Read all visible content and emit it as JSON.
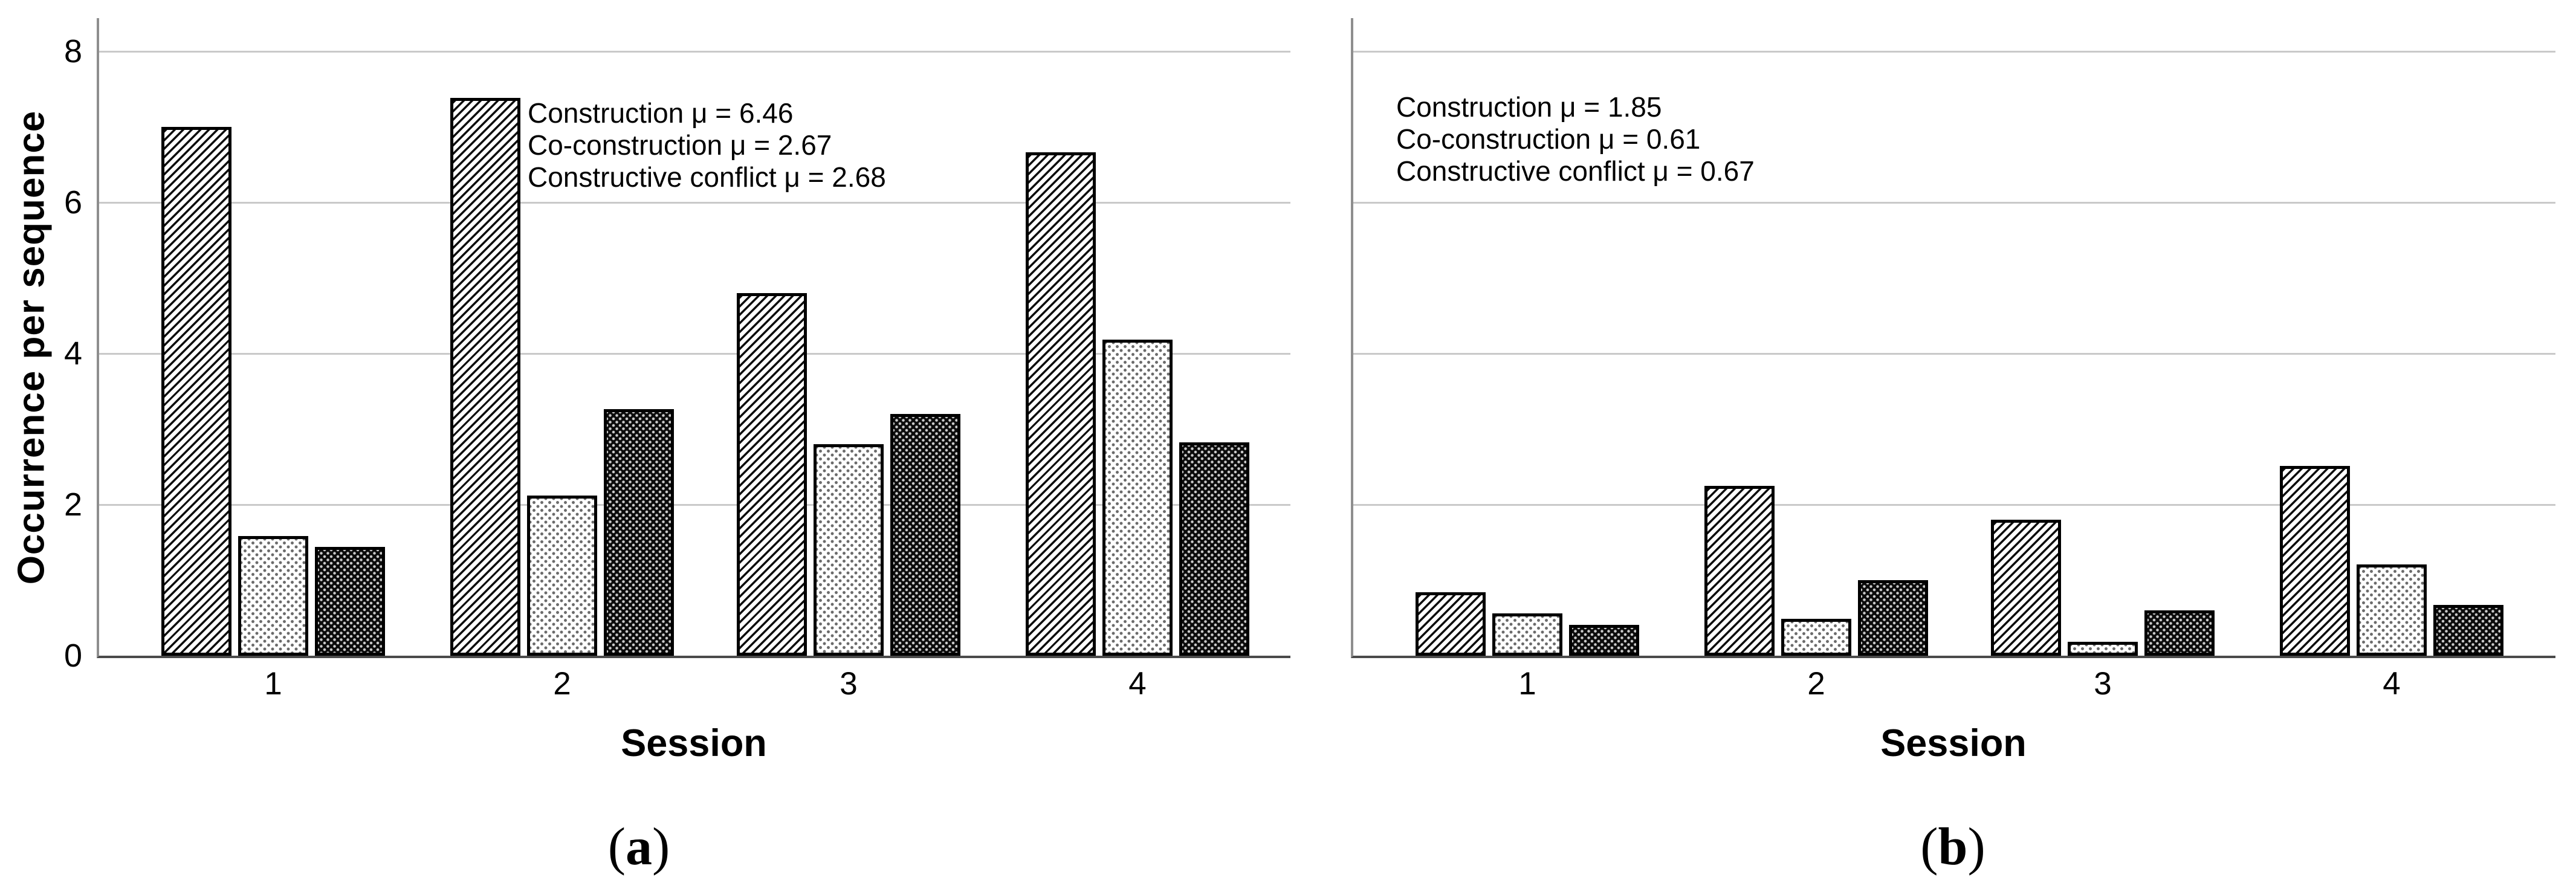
{
  "styles": {
    "background": "#ffffff",
    "gridline_color": "#c9c9c9",
    "y_axis_color": "#8e8e8e",
    "x_axis_color": "#4a4a4a",
    "bar_border_color": "#000000"
  },
  "captions": {
    "a": {
      "open": "(",
      "letter": "a",
      "close": ")"
    },
    "b": {
      "open": "(",
      "letter": "b",
      "close": ")"
    }
  },
  "chart_data": [
    {
      "panel": "a",
      "type": "bar",
      "title": "",
      "ylabel": "Occurrence per sequence",
      "xlabel": "Session",
      "ylim": [
        0,
        8
      ],
      "yticks": [
        0,
        2,
        4,
        6,
        8
      ],
      "show_y_tick_labels": true,
      "grid": "horizontal",
      "legend_position": "none",
      "categories": [
        "1",
        "2",
        "3",
        "4"
      ],
      "series": [
        {
          "name": "Construction",
          "pattern": "diagonal-hatch",
          "values": [
            7.0,
            7.38,
            4.8,
            6.66
          ]
        },
        {
          "name": "Co-construction",
          "pattern": "light-dots",
          "values": [
            1.58,
            2.12,
            2.8,
            4.18
          ]
        },
        {
          "name": "Constructive conflict",
          "pattern": "dark-dots",
          "values": [
            1.44,
            3.26,
            3.2,
            2.82
          ]
        }
      ],
      "annotation_lines": [
        "Construction μ = 6.46",
        "Co-construction μ = 2.67",
        "Constructive conflict μ = 2.68"
      ]
    },
    {
      "panel": "b",
      "type": "bar",
      "title": "",
      "ylabel": "",
      "xlabel": "Session",
      "ylim": [
        0,
        8
      ],
      "yticks": [
        0,
        2,
        4,
        6,
        8
      ],
      "show_y_tick_labels": false,
      "grid": "horizontal",
      "legend_position": "none",
      "categories": [
        "1",
        "2",
        "3",
        "4"
      ],
      "series": [
        {
          "name": "Construction",
          "pattern": "diagonal-hatch",
          "values": [
            0.84,
            2.25,
            1.8,
            2.51
          ]
        },
        {
          "name": "Co-construction",
          "pattern": "light-dots",
          "values": [
            0.56,
            0.49,
            0.18,
            1.21
          ]
        },
        {
          "name": "Constructive conflict",
          "pattern": "dark-dots",
          "values": [
            0.41,
            1.0,
            0.6,
            0.67
          ]
        }
      ],
      "annotation_lines": [
        "Construction μ = 1.85",
        "Co-construction μ = 0.61",
        "Constructive conflict μ = 0.67"
      ]
    }
  ]
}
